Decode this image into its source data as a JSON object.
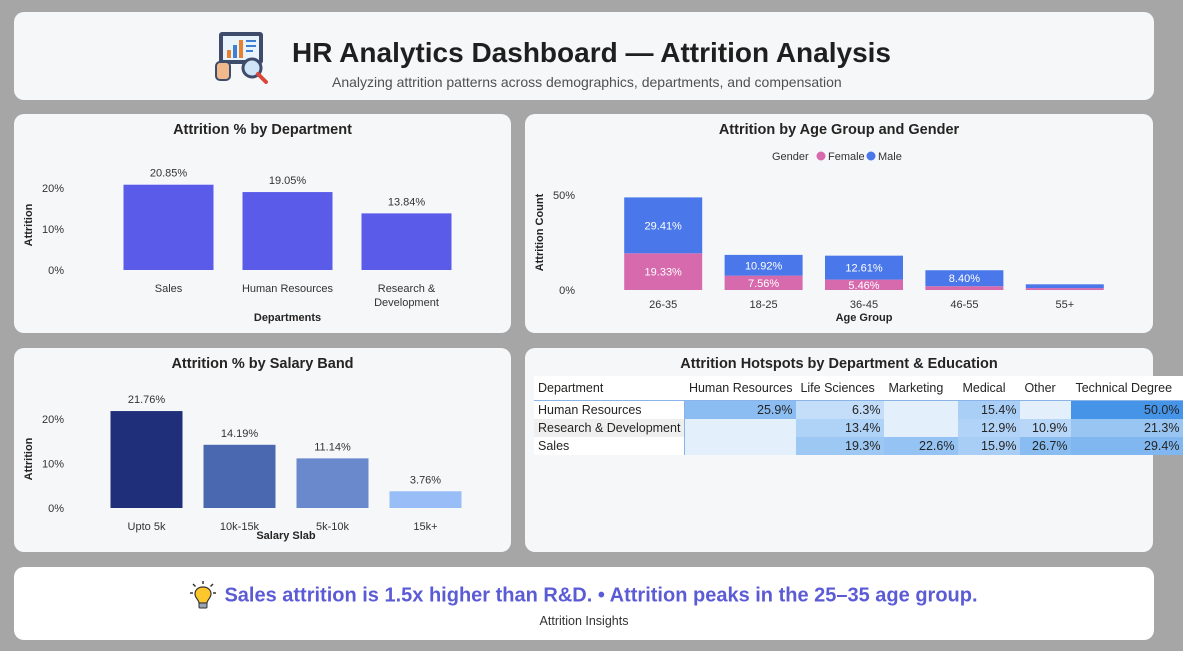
{
  "header": {
    "title": "HR Analytics Dashboard — Attrition Analysis",
    "subtitle": "Analyzing attrition patterns across demographics, departments, and compensation",
    "logo_icon": "analytics-magnifier-icon"
  },
  "colors": {
    "bar_primary": "#5b5bea",
    "female": "#d66aad",
    "male": "#4a78ea",
    "salary_bars": [
      "#1f2f7a",
      "#4a68b0",
      "#6a88cc",
      "#98bdf7"
    ],
    "insight_accent": "#5b5bd6"
  },
  "dept_chart": {
    "title": "Attrition % by Department",
    "chart_data": {
      "type": "bar",
      "categories": [
        "Sales",
        "Human Resources",
        "Research & Development"
      ],
      "category_lines": [
        [
          "Sales"
        ],
        [
          "Human Resources"
        ],
        [
          "Research &",
          "Development"
        ]
      ],
      "values": [
        20.85,
        19.05,
        13.84
      ],
      "data_labels": [
        "20.85%",
        "19.05%",
        "13.84%"
      ],
      "xlabel": "Departments",
      "ylabel": "Attrition",
      "yticks": [
        0,
        10,
        20
      ],
      "ytick_labels": [
        "0%",
        "10%",
        "20%"
      ],
      "ylim": [
        0,
        22
      ]
    }
  },
  "age_chart": {
    "title": "Attrition by Age Group and Gender",
    "legend": {
      "title": "Gender",
      "items": [
        "Female",
        "Male"
      ]
    },
    "chart_data": {
      "type": "bar",
      "stacked": true,
      "categories": [
        "26-35",
        "18-25",
        "36-45",
        "46-55",
        "55+"
      ],
      "series": [
        {
          "name": "Female",
          "values": [
            19.33,
            7.56,
            5.46,
            2.0,
            1.0
          ],
          "labels": [
            "19.33%",
            "7.56%",
            "5.46%",
            "",
            ""
          ]
        },
        {
          "name": "Male",
          "values": [
            29.41,
            10.92,
            12.61,
            8.4,
            2.0
          ],
          "labels": [
            "29.41%",
            "10.92%",
            "12.61%",
            "8.40%",
            ""
          ]
        }
      ],
      "xlabel": "Age Group",
      "ylabel": "Attrition Count",
      "yticks": [
        0,
        50
      ],
      "ytick_labels": [
        "0%",
        "50%"
      ],
      "ylim": [
        0,
        50
      ]
    }
  },
  "salary_chart": {
    "title": "Attrition % by Salary Band",
    "chart_data": {
      "type": "bar",
      "categories": [
        "Upto 5k",
        "10k-15k",
        "5k-10k",
        "15k+"
      ],
      "values": [
        21.76,
        14.19,
        11.14,
        3.76
      ],
      "data_labels": [
        "21.76%",
        "14.19%",
        "11.14%",
        "3.76%"
      ],
      "xlabel": "Salary Slab",
      "ylabel": "Attrition",
      "yticks": [
        0,
        10,
        20
      ],
      "ytick_labels": [
        "0%",
        "10%",
        "20%"
      ],
      "ylim": [
        0,
        22
      ]
    }
  },
  "heatmap": {
    "title": "Attrition Hotspots by Department & Education",
    "chart_data": {
      "type": "table",
      "row_header": "Department",
      "columns": [
        "Human Resources",
        "Life Sciences",
        "Marketing",
        "Medical",
        "Other",
        "Technical Degree"
      ],
      "rows": [
        {
          "label": "Human Resources",
          "values": [
            25.9,
            6.3,
            null,
            15.4,
            null,
            50.0
          ],
          "display": [
            "25.9%",
            "6.3%",
            "",
            "15.4%",
            "",
            "50.0%"
          ]
        },
        {
          "label": "Research & Development",
          "values": [
            null,
            13.4,
            null,
            12.9,
            10.9,
            21.3
          ],
          "display": [
            "",
            "13.4%",
            "",
            "12.9%",
            "10.9%",
            "21.3%"
          ]
        },
        {
          "label": "Sales",
          "values": [
            null,
            19.3,
            22.6,
            15.9,
            26.7,
            29.4
          ],
          "display": [
            "",
            "19.3%",
            "22.6%",
            "15.9%",
            "26.7%",
            "29.4%"
          ]
        }
      ]
    }
  },
  "insight": {
    "icon": "lightbulb-icon",
    "text": "Sales attrition is 1.5x higher than R&D. • Attrition peaks in the 25–35 age group.",
    "label": "Attrition Insights"
  }
}
